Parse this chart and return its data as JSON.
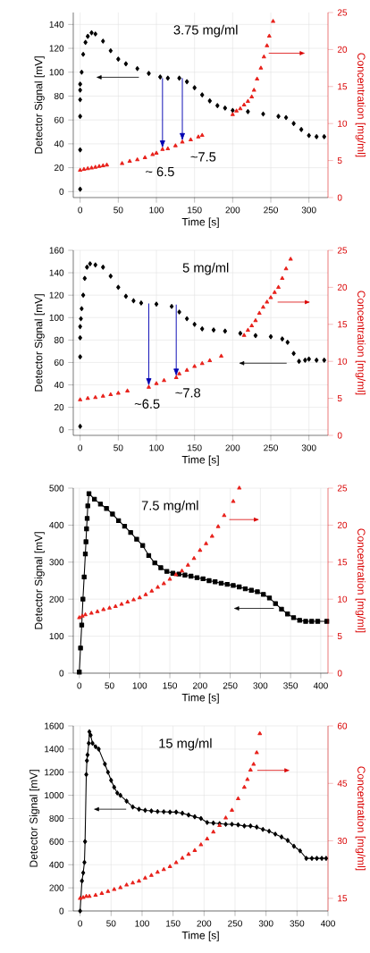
{
  "chart_data": [
    {
      "type": "scatter",
      "title": "3.75 mg/ml",
      "xlabel": "Time [s]",
      "ylabel": "Detector Signal [mV]",
      "y2label": "Concentration [mg/ml]",
      "annotations": [
        "~ 6.5",
        "~7.5"
      ],
      "xlim": [
        -9,
        325
      ],
      "xticks": [
        0,
        50,
        100,
        150,
        200,
        250,
        300
      ],
      "ylim": [
        -5,
        150
      ],
      "yticks": [
        0,
        20,
        40,
        60,
        80,
        100,
        120,
        140
      ],
      "y2lim": [
        0,
        25
      ],
      "y2ticks": [
        0,
        5,
        10,
        15,
        20,
        25
      ],
      "grid": true,
      "series": [
        {
          "color": "#000000",
          "marker": "diamond",
          "x": [
            0,
            0,
            0,
            0,
            0,
            0,
            2,
            4,
            7,
            10,
            15,
            20,
            30,
            40,
            50,
            60,
            75,
            90,
            105,
            115,
            130,
            140,
            150,
            160,
            170,
            180,
            190,
            200,
            220,
            240,
            260,
            270,
            280,
            290,
            300,
            310,
            320
          ],
          "values": [
            2,
            35,
            63,
            77,
            85,
            90,
            100,
            115,
            125,
            130,
            133,
            132,
            126,
            118,
            111,
            107,
            103,
            99,
            96,
            95,
            95,
            92,
            87,
            81,
            76,
            72,
            70,
            68,
            67,
            65,
            63,
            62,
            57,
            52,
            47,
            46,
            46
          ]
        },
        {
          "axis": "y2",
          "color": "#e8231d",
          "marker": "triangle",
          "x": [
            0,
            5,
            10,
            15,
            20,
            25,
            30,
            35,
            55,
            65,
            75,
            85,
            95,
            100,
            108,
            115,
            125,
            134,
            145,
            155,
            160,
            200,
            205,
            210,
            215,
            220,
            225,
            228,
            232,
            237,
            241,
            245,
            248,
            253
          ],
          "values": [
            3.7,
            3.8,
            3.9,
            4.0,
            4.1,
            4.2,
            4.3,
            4.4,
            4.6,
            4.9,
            5.1,
            5.4,
            5.8,
            6.0,
            6.5,
            6.6,
            7.0,
            7.5,
            7.8,
            8.2,
            8.4,
            11.2,
            11.7,
            12.0,
            12.5,
            13.0,
            13.6,
            14.5,
            16.0,
            17.5,
            19.0,
            20.5,
            21.8,
            23.8
          ]
        }
      ]
    },
    {
      "type": "scatter",
      "title": "5 mg/ml",
      "xlabel": "Time [s]",
      "ylabel": "Detector Signal [mV]",
      "y2label": "Concentration [mg/ml]",
      "annotations": [
        "~6.5",
        "~7.8"
      ],
      "xlim": [
        -9,
        325
      ],
      "xticks": [
        0,
        50,
        100,
        150,
        200,
        250,
        300
      ],
      "ylim": [
        -5,
        160
      ],
      "yticks": [
        0,
        20,
        40,
        60,
        80,
        100,
        120,
        140,
        160
      ],
      "y2lim": [
        0,
        25
      ],
      "y2ticks": [
        0,
        5,
        10,
        15,
        20,
        25
      ],
      "grid": true,
      "series": [
        {
          "color": "#000000",
          "marker": "diamond",
          "x": [
            0,
            0,
            0,
            0,
            1,
            2,
            4,
            6,
            9,
            13,
            20,
            30,
            40,
            50,
            60,
            70,
            80,
            100,
            120,
            130,
            140,
            150,
            160,
            175,
            190,
            210,
            230,
            250,
            265,
            272,
            280,
            287,
            295,
            300,
            310,
            320
          ],
          "values": [
            3,
            65,
            82,
            92,
            99,
            108,
            120,
            135,
            145,
            148,
            147,
            145,
            137,
            127,
            119,
            115,
            113,
            112,
            110,
            105,
            99,
            94,
            90,
            89,
            88,
            86,
            84,
            83,
            81,
            78,
            68,
            61,
            62,
            63,
            62,
            62
          ]
        },
        {
          "axis": "y2",
          "color": "#e8231d",
          "marker": "triangle",
          "x": [
            0,
            10,
            20,
            30,
            40,
            50,
            62,
            90,
            100,
            110,
            126,
            130,
            140,
            150,
            160,
            170,
            185,
            215,
            220,
            225,
            230,
            235,
            240,
            245,
            250,
            255,
            260,
            265,
            270,
            276
          ],
          "values": [
            4.8,
            5.0,
            5.1,
            5.3,
            5.5,
            5.7,
            6.0,
            6.5,
            7.0,
            7.4,
            7.8,
            8.3,
            8.8,
            9.3,
            9.7,
            10.1,
            10.7,
            13.5,
            14.2,
            14.8,
            15.5,
            16.5,
            17.3,
            18.0,
            18.6,
            19.3,
            20.0,
            21.2,
            22.5,
            23.8
          ]
        }
      ]
    },
    {
      "type": "line",
      "title": "7.5 mg/ml",
      "xlabel": "Time [s]",
      "ylabel": "Detector Signal [mV]",
      "y2label": "Concentration [mg/ml]",
      "xlim": [
        -10,
        412
      ],
      "xticks": [
        0,
        50,
        100,
        150,
        200,
        250,
        300,
        350,
        400
      ],
      "ylim": [
        0,
        500
      ],
      "yticks": [
        0,
        100,
        200,
        300,
        400,
        500
      ],
      "y2lim": [
        0,
        25
      ],
      "y2ticks": [
        0,
        5,
        10,
        15,
        20,
        25
      ],
      "grid": true,
      "series": [
        {
          "color": "#000000",
          "marker": "square",
          "x": [
            0,
            2,
            4,
            6,
            8,
            10,
            11,
            12,
            13,
            14,
            16,
            25,
            35,
            45,
            55,
            65,
            75,
            85,
            95,
            105,
            115,
            125,
            135,
            145,
            155,
            165,
            175,
            185,
            195,
            205,
            215,
            225,
            235,
            245,
            255,
            265,
            275,
            285,
            295,
            305,
            315,
            325,
            335,
            345,
            355,
            365,
            375,
            385,
            395,
            410
          ],
          "values": [
            3,
            68,
            130,
            200,
            260,
            322,
            355,
            390,
            418,
            452,
            485,
            470,
            457,
            445,
            430,
            412,
            397,
            380,
            362,
            345,
            318,
            298,
            285,
            275,
            270,
            268,
            265,
            262,
            258,
            255,
            250,
            247,
            243,
            240,
            237,
            233,
            228,
            224,
            220,
            213,
            203,
            188,
            173,
            160,
            150,
            143,
            140,
            140,
            140,
            140
          ]
        },
        {
          "type": "scatter",
          "axis": "y2",
          "color": "#e8231d",
          "marker": "triangle",
          "x": [
            0,
            5,
            10,
            20,
            30,
            40,
            50,
            60,
            70,
            80,
            90,
            100,
            110,
            120,
            130,
            140,
            150,
            160,
            170,
            180,
            190,
            200,
            210,
            220,
            230,
            240,
            255,
            265
          ],
          "values": [
            7.5,
            7.7,
            7.9,
            8.1,
            8.3,
            8.6,
            8.8,
            9.0,
            9.3,
            9.6,
            9.9,
            10.2,
            10.6,
            11.1,
            11.6,
            12.1,
            12.7,
            13.3,
            13.8,
            14.6,
            15.5,
            16.6,
            17.5,
            18.5,
            19.8,
            21.3,
            23.2,
            25.0
          ]
        }
      ]
    },
    {
      "type": "line",
      "title": "15 mg/ml",
      "xlabel": "Time [s]",
      "ylabel": "Detector Signal [mV]",
      "y2label": "Concentration [mg/ml]",
      "xlim": [
        -11,
        400
      ],
      "xticks": [
        0,
        50,
        100,
        150,
        200,
        250,
        300,
        350,
        400
      ],
      "ylim": [
        0,
        1600
      ],
      "yticks": [
        0,
        200,
        400,
        600,
        800,
        1000,
        1200,
        1400,
        1600
      ],
      "y2lim": [
        11.7,
        60
      ],
      "y2ticks": [
        15,
        30,
        45,
        60
      ],
      "grid": true,
      "series": [
        {
          "color": "#000000",
          "marker": "diamond",
          "x": [
            0,
            3,
            5,
            7,
            8,
            10,
            11,
            12,
            14,
            15,
            17,
            20,
            25,
            30,
            40,
            45,
            50,
            55,
            60,
            65,
            75,
            85,
            95,
            105,
            115,
            125,
            135,
            145,
            155,
            165,
            175,
            185,
            195,
            205,
            215,
            225,
            235,
            245,
            255,
            265,
            275,
            285,
            295,
            305,
            315,
            325,
            335,
            345,
            355,
            365,
            374,
            382,
            390,
            397
          ],
          "values": [
            0,
            260,
            330,
            420,
            600,
            1180,
            1300,
            1350,
            1450,
            1550,
            1520,
            1450,
            1420,
            1400,
            1270,
            1200,
            1130,
            1070,
            1020,
            1000,
            950,
            900,
            880,
            870,
            865,
            860,
            858,
            855,
            855,
            845,
            830,
            815,
            800,
            765,
            760,
            755,
            750,
            750,
            745,
            735,
            735,
            725,
            705,
            690,
            665,
            640,
            610,
            560,
            520,
            455,
            455,
            455,
            455,
            455
          ]
        },
        {
          "type": "scatter",
          "axis": "y2",
          "color": "#e8231d",
          "marker": "triangle",
          "x": [
            0,
            5,
            10,
            15,
            25,
            35,
            45,
            55,
            65,
            75,
            85,
            95,
            105,
            115,
            125,
            135,
            145,
            155,
            165,
            175,
            185,
            195,
            205,
            215,
            225,
            235,
            245,
            255,
            265,
            270,
            275,
            280,
            285,
            290
          ],
          "values": [
            15,
            15.2,
            15.5,
            15.5,
            15.8,
            16.3,
            16.8,
            17.3,
            17.8,
            18.5,
            19.0,
            19.5,
            20.3,
            21,
            21.8,
            22.5,
            23.3,
            24.3,
            25.5,
            26.5,
            27.5,
            29,
            30.5,
            32.3,
            34,
            36,
            38,
            41,
            44,
            46,
            48.5,
            50,
            53,
            58
          ]
        }
      ]
    }
  ]
}
